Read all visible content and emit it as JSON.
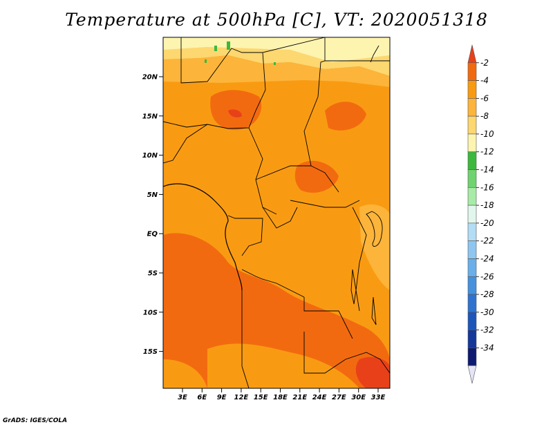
{
  "title": "Temperature at 500hPa [C], VT: 2020051318",
  "credit": "GrADS: IGES/COLA",
  "map": {
    "lat_labels": [
      "20N",
      "15N",
      "10N",
      "5N",
      "EQ",
      "5S",
      "10S",
      "15S"
    ],
    "lon_labels": [
      "3E",
      "6E",
      "9E",
      "12E",
      "15E",
      "18E",
      "21E",
      "24E",
      "27E",
      "30E",
      "33E"
    ]
  },
  "colorbar": {
    "labels": [
      "-2",
      "-4",
      "-6",
      "-8",
      "-10",
      "-12",
      "-14",
      "-16",
      "-18",
      "-20",
      "-22",
      "-24",
      "-26",
      "-28",
      "-30",
      "-32",
      "-34"
    ],
    "colors": [
      "#e8411a",
      "#f26a10",
      "#f99b12",
      "#fdb43a",
      "#fdd770",
      "#fdf4b0",
      "#3cb93c",
      "#6fd36f",
      "#a7eba7",
      "#e1f7ee",
      "#b3dcf5",
      "#8ec6f1",
      "#6aafe9",
      "#4691dd",
      "#2f73cf",
      "#1d56b8",
      "#15379a",
      "#0d1a70",
      "#e5e5f7"
    ]
  },
  "colors": {
    "background": "#ffffff",
    "border": "#000000"
  }
}
